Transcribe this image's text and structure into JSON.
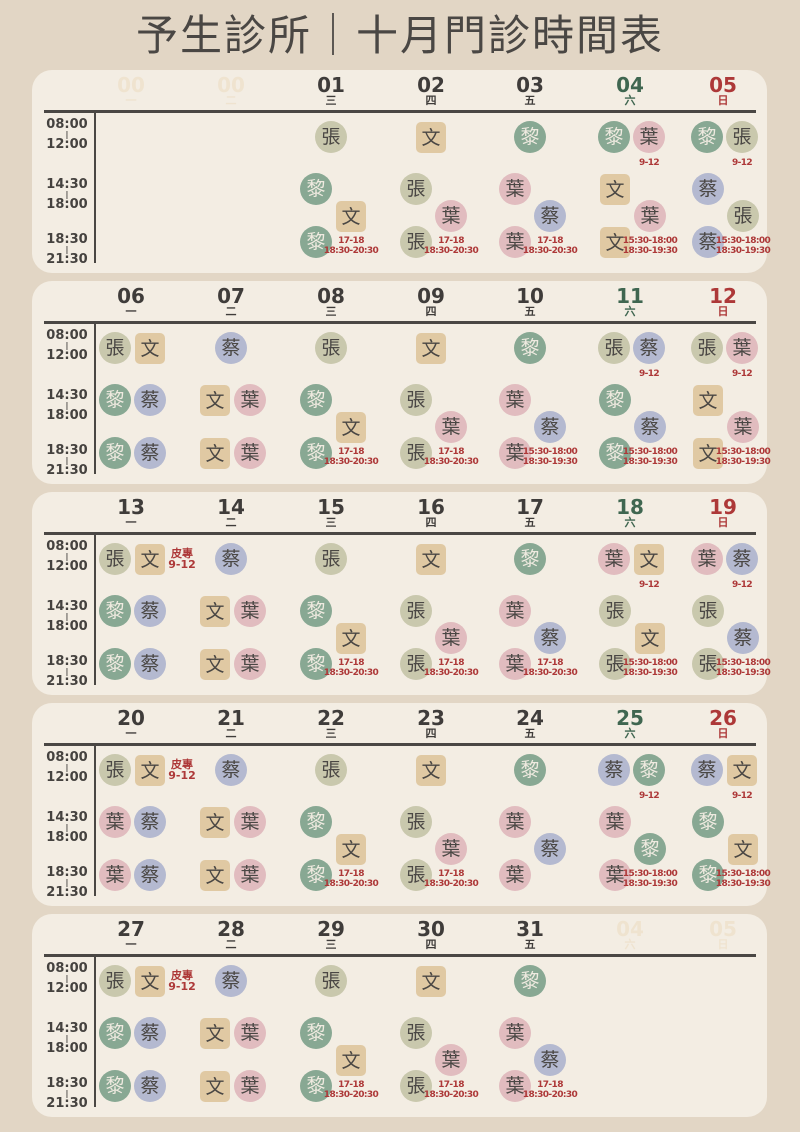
{
  "title": "予生診所｜十月門診時間表",
  "colors": {
    "background": "#e2d6c5",
    "panel": "#f3ede3",
    "text": "#4a4744",
    "saturday": "#3f6650",
    "sunday": "#ad3838",
    "note": "#ad3838",
    "doctor_張": "#c9c8ad",
    "doctor_文": "#e0c9a3",
    "doctor_黎": "#88a893",
    "doctor_蔡": "#b4b9d0",
    "doctor_葉": "#e1bcbf"
  },
  "time_slots": [
    {
      "start": "08:00",
      "end": "12:00"
    },
    {
      "start": "14:30",
      "end": "18:00"
    },
    {
      "start": "18:30",
      "end": "21:30"
    }
  ],
  "weeks": [
    {
      "days": [
        {
          "date": "00",
          "weekday": "一",
          "ghost": true
        },
        {
          "date": "00",
          "weekday": "二",
          "ghost": true
        },
        {
          "date": "01",
          "weekday": "三",
          "morning": [
            "張"
          ],
          "stagger": [
            "黎",
            "文",
            "黎"
          ],
          "note": [
            "17-18",
            "18:30-20:30"
          ]
        },
        {
          "date": "02",
          "weekday": "四",
          "morning": [
            "文"
          ],
          "stagger": [
            "張",
            "葉",
            "張"
          ],
          "note": [
            "17-18",
            "18:30-20:30"
          ]
        },
        {
          "date": "03",
          "weekday": "五",
          "morning": [
            "黎"
          ],
          "stagger": [
            "葉",
            "蔡",
            "葉"
          ],
          "note": [
            "17-18",
            "18:30-20:30"
          ]
        },
        {
          "date": "04",
          "weekday": "六",
          "morning": [
            "黎",
            "葉"
          ],
          "morning_note": "9-12",
          "stagger": [
            "文",
            "葉",
            "文"
          ],
          "note": [
            "15:30-18:00",
            "18:30-19:30"
          ]
        },
        {
          "date": "05",
          "weekday": "日",
          "morning": [
            "黎",
            "張"
          ],
          "morning_note": "9-12",
          "stagger": [
            "蔡",
            "張",
            "蔡"
          ],
          "note": [
            "15:30-18:00",
            "18:30-19:30"
          ]
        }
      ]
    },
    {
      "days": [
        {
          "date": "06",
          "weekday": "一",
          "morning": [
            "張",
            "文"
          ],
          "afternoon": [
            "黎",
            "蔡"
          ],
          "evening": [
            "黎",
            "蔡"
          ]
        },
        {
          "date": "07",
          "weekday": "二",
          "morning": [
            "蔡"
          ],
          "afternoon": [
            "文",
            "葉"
          ],
          "evening": [
            "文",
            "葉"
          ]
        },
        {
          "date": "08",
          "weekday": "三",
          "morning": [
            "張"
          ],
          "stagger": [
            "黎",
            "文",
            "黎"
          ],
          "note": [
            "17-18",
            "18:30-20:30"
          ]
        },
        {
          "date": "09",
          "weekday": "四",
          "morning": [
            "文"
          ],
          "stagger": [
            "張",
            "葉",
            "張"
          ],
          "note": [
            "17-18",
            "18:30-20:30"
          ]
        },
        {
          "date": "10",
          "weekday": "五",
          "morning": [
            "黎"
          ],
          "stagger": [
            "葉",
            "蔡",
            "葉"
          ],
          "note": [
            "15:30-18:00",
            "18:30-19:30"
          ]
        },
        {
          "date": "11",
          "weekday": "六",
          "morning": [
            "張",
            "蔡"
          ],
          "morning_note": "9-12",
          "stagger": [
            "黎",
            "蔡",
            "黎"
          ],
          "note": [
            "15:30-18:00",
            "18:30-19:30"
          ]
        },
        {
          "date": "12",
          "weekday": "日",
          "morning": [
            "張",
            "葉"
          ],
          "morning_note": "9-12",
          "stagger": [
            "文",
            "葉",
            "文"
          ],
          "note": [
            "15:30-18:00",
            "18:30-19:30"
          ]
        }
      ]
    },
    {
      "days": [
        {
          "date": "13",
          "weekday": "一",
          "morning": [
            "張",
            "文"
          ],
          "special": [
            "皮專",
            "9-12"
          ],
          "afternoon": [
            "黎",
            "蔡"
          ],
          "evening": [
            "黎",
            "蔡"
          ]
        },
        {
          "date": "14",
          "weekday": "二",
          "morning": [
            "蔡"
          ],
          "afternoon": [
            "文",
            "葉"
          ],
          "evening": [
            "文",
            "葉"
          ]
        },
        {
          "date": "15",
          "weekday": "三",
          "morning": [
            "張"
          ],
          "stagger": [
            "黎",
            "文",
            "黎"
          ],
          "note": [
            "17-18",
            "18:30-20:30"
          ]
        },
        {
          "date": "16",
          "weekday": "四",
          "morning": [
            "文"
          ],
          "stagger": [
            "張",
            "葉",
            "張"
          ],
          "note": [
            "17-18",
            "18:30-20:30"
          ]
        },
        {
          "date": "17",
          "weekday": "五",
          "morning": [
            "黎"
          ],
          "stagger": [
            "葉",
            "蔡",
            "葉"
          ],
          "note": [
            "17-18",
            "18:30-20:30"
          ]
        },
        {
          "date": "18",
          "weekday": "六",
          "morning": [
            "葉",
            "文"
          ],
          "morning_note": "9-12",
          "stagger": [
            "張",
            "文",
            "張"
          ],
          "note": [
            "15:30-18:00",
            "18:30-19:30"
          ]
        },
        {
          "date": "19",
          "weekday": "日",
          "morning": [
            "葉",
            "蔡"
          ],
          "morning_note": "9-12",
          "stagger": [
            "張",
            "蔡",
            "張"
          ],
          "note": [
            "15:30-18:00",
            "18:30-19:30"
          ]
        }
      ]
    },
    {
      "days": [
        {
          "date": "20",
          "weekday": "一",
          "morning": [
            "張",
            "文"
          ],
          "special": [
            "皮專",
            "9-12"
          ],
          "afternoon": [
            "葉",
            "蔡"
          ],
          "evening": [
            "葉",
            "蔡"
          ]
        },
        {
          "date": "21",
          "weekday": "二",
          "morning": [
            "蔡"
          ],
          "afternoon": [
            "文",
            "葉"
          ],
          "evening": [
            "文",
            "葉"
          ]
        },
        {
          "date": "22",
          "weekday": "三",
          "morning": [
            "張"
          ],
          "stagger": [
            "黎",
            "文",
            "黎"
          ],
          "note": [
            "17-18",
            "18:30-20:30"
          ]
        },
        {
          "date": "23",
          "weekday": "四",
          "morning": [
            "文"
          ],
          "stagger": [
            "張",
            "葉",
            "張"
          ],
          "note": [
            "17-18",
            "18:30-20:30"
          ]
        },
        {
          "date": "24",
          "weekday": "五",
          "morning": [
            "黎"
          ],
          "stagger": [
            "葉",
            "蔡",
            "葉"
          ]
        },
        {
          "date": "25",
          "weekday": "六",
          "morning": [
            "蔡",
            "黎"
          ],
          "morning_note": "9-12",
          "stagger": [
            "葉",
            "黎",
            "葉"
          ],
          "note": [
            "15:30-18:00",
            "18:30-19:30"
          ]
        },
        {
          "date": "26",
          "weekday": "日",
          "morning": [
            "蔡",
            "文"
          ],
          "morning_note": "9-12",
          "stagger": [
            "黎",
            "文",
            "黎"
          ],
          "note": [
            "15:30-18:00",
            "18:30-19:30"
          ]
        }
      ]
    },
    {
      "days": [
        {
          "date": "27",
          "weekday": "一",
          "morning": [
            "張",
            "文"
          ],
          "special": [
            "皮專",
            "9-12"
          ],
          "afternoon": [
            "黎",
            "蔡"
          ],
          "evening": [
            "黎",
            "蔡"
          ]
        },
        {
          "date": "28",
          "weekday": "二",
          "morning": [
            "蔡"
          ],
          "afternoon": [
            "文",
            "葉"
          ],
          "evening": [
            "文",
            "葉"
          ]
        },
        {
          "date": "29",
          "weekday": "三",
          "morning": [
            "張"
          ],
          "stagger": [
            "黎",
            "文",
            "黎"
          ],
          "note": [
            "17-18",
            "18:30-20:30"
          ]
        },
        {
          "date": "30",
          "weekday": "四",
          "morning": [
            "文"
          ],
          "stagger": [
            "張",
            "葉",
            "張"
          ],
          "note": [
            "17-18",
            "18:30-20:30"
          ]
        },
        {
          "date": "31",
          "weekday": "五",
          "morning": [
            "黎"
          ],
          "stagger": [
            "葉",
            "蔡",
            "葉"
          ],
          "note": [
            "17-18",
            "18:30-20:30"
          ]
        },
        {
          "date": "04",
          "weekday": "六",
          "ghost": true
        },
        {
          "date": "05",
          "weekday": "日",
          "ghost": true
        }
      ]
    }
  ]
}
